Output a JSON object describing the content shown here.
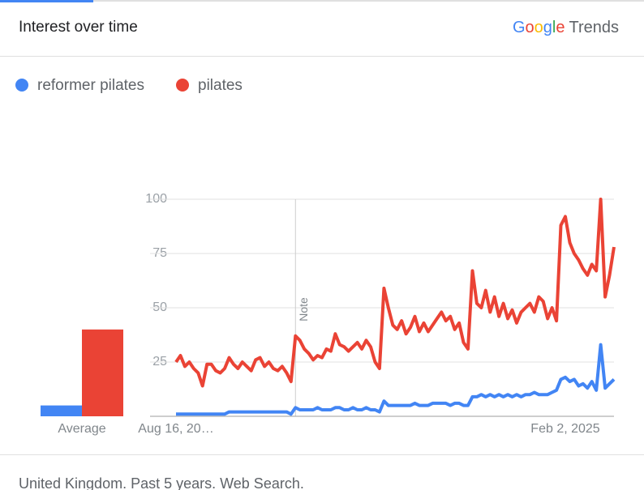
{
  "header": {
    "title": "Interest over time",
    "brand": "Google",
    "product": "Trends"
  },
  "chart_data": {
    "type": "line",
    "note": "Note",
    "average_label": "Average",
    "averages": [
      5,
      40
    ],
    "categories": [
      "Aug 16, 20…",
      null,
      null,
      null,
      null,
      null,
      null,
      null,
      null,
      null,
      null,
      null,
      null,
      null,
      null,
      null,
      null,
      null,
      null,
      null,
      null,
      null,
      null,
      null,
      null,
      null,
      null,
      null,
      null,
      null,
      null,
      null,
      null,
      null,
      null,
      null,
      null,
      null,
      null,
      null,
      null,
      null,
      null,
      null,
      null,
      null,
      null,
      null,
      null,
      null,
      null,
      null,
      null,
      null,
      null,
      null,
      null,
      null,
      null,
      null,
      null,
      null,
      null,
      null,
      null,
      null,
      null,
      null,
      null,
      null,
      null,
      null,
      null,
      null,
      null,
      null,
      null,
      null,
      null,
      null,
      null,
      null,
      null,
      null,
      null,
      null,
      null,
      null,
      "Feb 2, 2025",
      null,
      null,
      null,
      null,
      null,
      null,
      null,
      null,
      null,
      null,
      null
    ],
    "series": [
      {
        "name": "reformer pilates",
        "color": "#4285f4",
        "values": [
          1,
          1,
          1,
          1,
          1,
          1,
          1,
          1,
          1,
          1,
          1,
          1,
          2,
          2,
          2,
          2,
          2,
          2,
          2,
          2,
          2,
          2,
          2,
          2,
          2,
          2,
          1,
          4,
          3,
          3,
          3,
          3,
          4,
          3,
          3,
          3,
          4,
          4,
          3,
          3,
          4,
          3,
          3,
          4,
          3,
          3,
          2,
          7,
          5,
          5,
          5,
          5,
          5,
          5,
          6,
          5,
          5,
          5,
          6,
          6,
          6,
          6,
          5,
          6,
          6,
          5,
          5,
          9,
          9,
          10,
          9,
          10,
          9,
          10,
          9,
          10,
          9,
          10,
          9,
          10,
          10,
          11,
          10,
          10,
          10,
          11,
          12,
          17,
          18,
          16,
          17,
          14,
          15,
          13,
          16,
          12,
          33,
          13,
          15,
          17
        ]
      },
      {
        "name": "pilates",
        "color": "#ea4335",
        "values": [
          25,
          28,
          23,
          25,
          22,
          20,
          14,
          24,
          24,
          21,
          20,
          22,
          27,
          24,
          22,
          25,
          23,
          21,
          26,
          27,
          23,
          25,
          22,
          21,
          23,
          20,
          16,
          37,
          35,
          31,
          29,
          26,
          28,
          27,
          31,
          30,
          38,
          33,
          32,
          30,
          32,
          34,
          31,
          35,
          32,
          25,
          22,
          59,
          50,
          42,
          40,
          44,
          38,
          41,
          46,
          39,
          43,
          39,
          42,
          45,
          48,
          44,
          46,
          40,
          43,
          34,
          31,
          67,
          52,
          50,
          58,
          48,
          55,
          46,
          52,
          45,
          49,
          43,
          48,
          50,
          52,
          48,
          55,
          53,
          45,
          50,
          44,
          88,
          92,
          80,
          75,
          72,
          68,
          65,
          70,
          67,
          100,
          55,
          65,
          78
        ]
      }
    ],
    "ylim": [
      0,
      100
    ],
    "yticks": [
      25,
      50,
      75,
      100
    ],
    "grid": true
  },
  "footer": {
    "text": "United Kingdom. Past 5 years. Web Search."
  }
}
